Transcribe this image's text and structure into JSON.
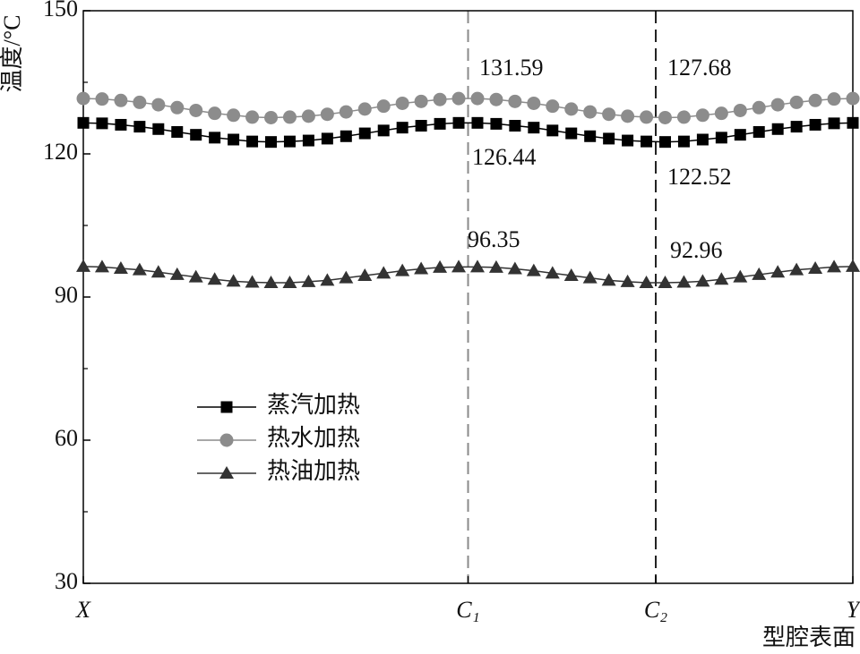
{
  "chart_data": {
    "type": "line",
    "x_label": "型腔表面",
    "y_label": "温度/°C",
    "x": [
      0,
      1,
      2,
      3,
      4,
      5,
      6,
      7,
      8,
      9,
      10,
      11,
      12,
      13,
      14,
      15,
      16,
      17,
      18,
      19,
      20,
      21,
      22,
      23,
      24,
      25,
      26,
      27,
      28,
      29,
      30,
      31,
      32,
      33,
      34,
      35,
      36,
      37,
      38,
      39,
      40,
      41
    ],
    "xlim": [
      0,
      41
    ],
    "xticks": [
      {
        "value": 0,
        "label": "X"
      },
      {
        "value": 20.5,
        "label": "C₁"
      },
      {
        "value": 30.5,
        "label": "C₂"
      },
      {
        "value": 41,
        "label": "Y"
      }
    ],
    "ylim": [
      30,
      150
    ],
    "yticks": [
      30,
      60,
      90,
      120,
      150
    ],
    "reference_lines": [
      {
        "tick": 1,
        "color": "#8a8a8a"
      },
      {
        "tick": 2,
        "color": "#222222"
      }
    ],
    "legend": "center-left",
    "series": [
      {
        "name": "蒸汽加热",
        "color": "#000000",
        "marker": "square",
        "values": [
          126.5,
          126.4,
          126.1,
          125.7,
          125.2,
          124.6,
          124.0,
          123.4,
          123.0,
          122.6,
          122.5,
          122.6,
          122.8,
          123.2,
          123.7,
          124.3,
          124.9,
          125.5,
          125.9,
          126.3,
          126.5,
          126.5,
          126.3,
          125.9,
          125.5,
          124.9,
          124.3,
          123.7,
          123.2,
          122.8,
          122.6,
          122.5,
          122.6,
          123.0,
          123.4,
          124.0,
          124.6,
          125.2,
          125.7,
          126.1,
          126.4,
          126.5
        ]
      },
      {
        "name": "热水加热",
        "color": "#8c8c8c",
        "marker": "circle",
        "values": [
          131.6,
          131.5,
          131.2,
          130.8,
          130.3,
          129.7,
          129.1,
          128.5,
          128.1,
          127.7,
          127.6,
          127.7,
          127.9,
          128.3,
          128.8,
          129.4,
          130.0,
          130.6,
          131.0,
          131.4,
          131.6,
          131.6,
          131.4,
          131.0,
          130.6,
          130.0,
          129.4,
          128.8,
          128.3,
          127.9,
          127.7,
          127.6,
          127.7,
          128.1,
          128.5,
          129.1,
          129.7,
          130.3,
          130.8,
          131.2,
          131.5,
          131.6
        ]
      },
      {
        "name": "热油加热",
        "color": "#333333",
        "marker": "triangle",
        "values": [
          96.4,
          96.3,
          96.0,
          95.7,
          95.2,
          94.7,
          94.2,
          93.7,
          93.3,
          93.1,
          93.0,
          93.0,
          93.2,
          93.5,
          94.0,
          94.5,
          95.0,
          95.5,
          95.9,
          96.2,
          96.3,
          96.3,
          96.2,
          95.9,
          95.5,
          95.0,
          94.5,
          94.0,
          93.5,
          93.2,
          93.0,
          93.0,
          93.1,
          93.3,
          93.7,
          94.2,
          94.7,
          95.2,
          95.7,
          96.0,
          96.3,
          96.4
        ]
      }
    ],
    "annotations": [
      "131.59",
      "127.68",
      "126.44",
      "122.52",
      "96.35",
      "92.96"
    ]
  }
}
